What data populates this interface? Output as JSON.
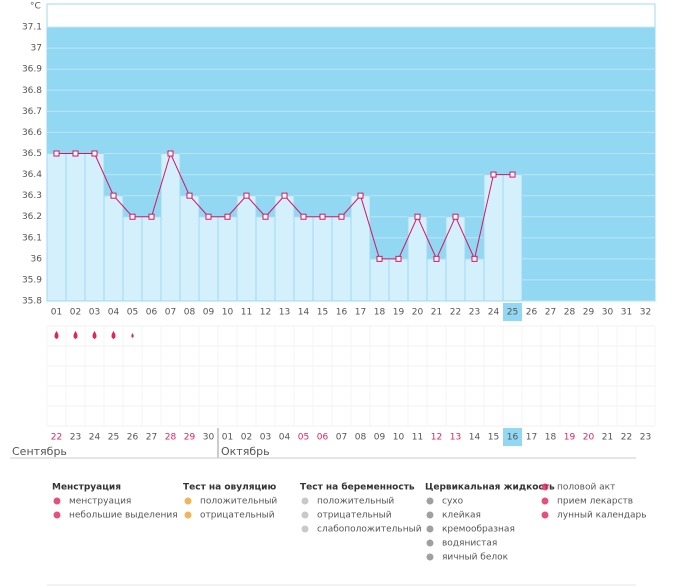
{
  "chart_data": {
    "type": "line",
    "y_label": "°C",
    "x": [
      "01",
      "02",
      "03",
      "04",
      "05",
      "06",
      "07",
      "08",
      "09",
      "10",
      "11",
      "12",
      "13",
      "14",
      "15",
      "16",
      "17",
      "18",
      "19",
      "20",
      "21",
      "22",
      "23",
      "24",
      "25",
      "26",
      "27",
      "28",
      "29",
      "30",
      "31",
      "32"
    ],
    "values": [
      36.5,
      36.5,
      36.5,
      36.3,
      36.2,
      36.2,
      36.5,
      36.3,
      36.2,
      36.2,
      36.3,
      36.2,
      36.3,
      36.2,
      36.2,
      36.2,
      36.3,
      36.0,
      36.0,
      36.2,
      36.0,
      36.2,
      36.0,
      36.4,
      36.4,
      null,
      null,
      null,
      null,
      null,
      null,
      null
    ],
    "ylim": [
      35.8,
      37.2
    ],
    "yticks": [
      35.8,
      35.9,
      36,
      36.1,
      36.2,
      36.3,
      36.4,
      36.5,
      36.6,
      36.7,
      36.8,
      36.9,
      37,
      37.1
    ],
    "color": "#d6145f",
    "current_day": "25",
    "menstruation": [
      "heavy",
      "heavy",
      "heavy",
      "heavy",
      "light"
    ]
  },
  "calendar": {
    "dates": [
      {
        "text": "22",
        "weekend": true
      },
      {
        "text": "23",
        "weekend": false
      },
      {
        "text": "24",
        "weekend": false
      },
      {
        "text": "25",
        "weekend": false
      },
      {
        "text": "26",
        "weekend": false
      },
      {
        "text": "27",
        "weekend": false
      },
      {
        "text": "28",
        "weekend": true
      },
      {
        "text": "29",
        "weekend": true
      },
      {
        "text": "30",
        "weekend": false
      },
      {
        "text": "01",
        "weekend": false
      },
      {
        "text": "02",
        "weekend": false
      },
      {
        "text": "03",
        "weekend": false
      },
      {
        "text": "04",
        "weekend": false
      },
      {
        "text": "05",
        "weekend": true
      },
      {
        "text": "06",
        "weekend": true
      },
      {
        "text": "07",
        "weekend": false
      },
      {
        "text": "08",
        "weekend": false
      },
      {
        "text": "09",
        "weekend": false
      },
      {
        "text": "10",
        "weekend": false
      },
      {
        "text": "11",
        "weekend": false
      },
      {
        "text": "12",
        "weekend": true
      },
      {
        "text": "13",
        "weekend": true
      },
      {
        "text": "14",
        "weekend": false
      },
      {
        "text": "15",
        "weekend": false
      },
      {
        "text": "16",
        "weekend": false
      },
      {
        "text": "17",
        "weekend": false
      },
      {
        "text": "18",
        "weekend": false
      },
      {
        "text": "19",
        "weekend": true
      },
      {
        "text": "20",
        "weekend": true
      },
      {
        "text": "21",
        "weekend": false
      },
      {
        "text": "22",
        "weekend": false
      },
      {
        "text": "23",
        "weekend": false
      }
    ],
    "months": [
      "Сентябрь",
      "Октябрь"
    ]
  },
  "legend": [
    {
      "title": "Менструация",
      "items": [
        "менструация",
        "небольшие выделения"
      ]
    },
    {
      "title": "Тест на овуляцию",
      "items": [
        "положительный",
        "отрицательный"
      ]
    },
    {
      "title": "Тест на беременность",
      "items": [
        "положительный",
        "отрицательный",
        "слабоположительный"
      ]
    },
    {
      "title": "Цервикальная жидкость",
      "items": [
        "сухо",
        "клейкая",
        "кремообразная",
        "водянистая",
        "яичный белок"
      ]
    },
    {
      "items": [
        "половой акт",
        "прием лекарств",
        "лунный календарь"
      ]
    }
  ]
}
